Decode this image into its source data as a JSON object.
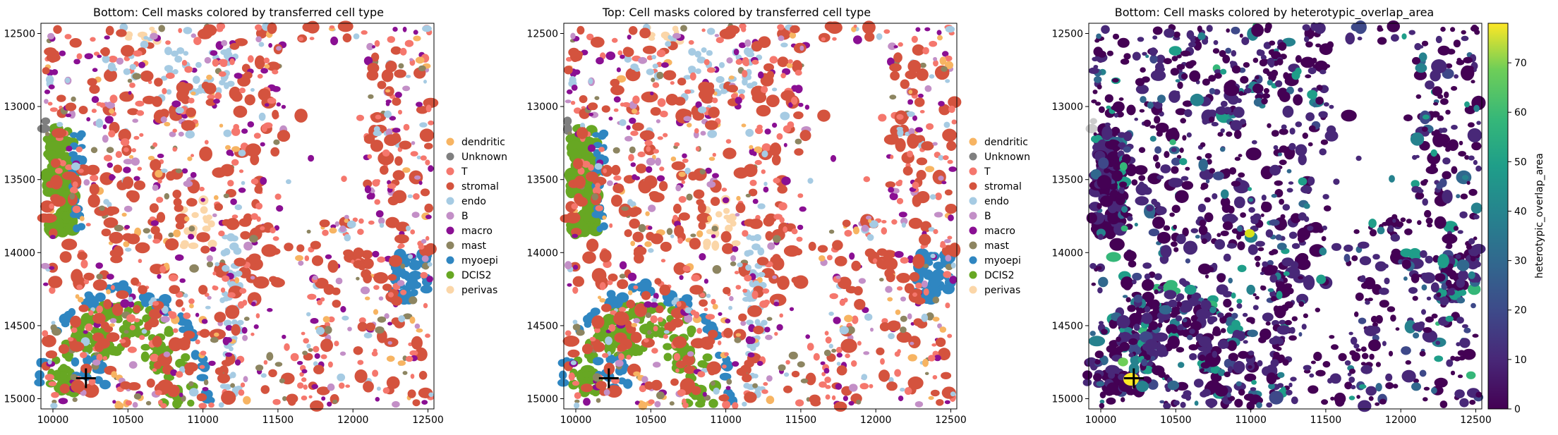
{
  "palette": {
    "dendritic": "#f7b462",
    "Unknown": "#7f7f7f",
    "T": "#f5776d",
    "stromal": "#d4533e",
    "endo": "#a6cbe3",
    "B": "#c38fc7",
    "macro": "#8a0f93",
    "mast": "#8d8561",
    "myoepi": "#2f86c1",
    "DCIS2": "#67a723",
    "perivas": "#fbd6a8"
  },
  "colormap": "viridis",
  "chart_data": [
    {
      "type": "scatter",
      "title": "Bottom: Cell masks colored by transferred cell type",
      "xlim": [
        9920,
        12540
      ],
      "ylim": [
        15070,
        12430
      ],
      "xticks": [
        "10000",
        "10500",
        "11000",
        "11500",
        "12000",
        "12500"
      ],
      "yticks": [
        "12500",
        "13000",
        "13500",
        "14000",
        "14500",
        "15000"
      ],
      "legend": {
        "placement": "right",
        "entries": [
          "dendritic",
          "Unknown",
          "T",
          "stromal",
          "endo",
          "B",
          "macro",
          "mast",
          "myoepi",
          "DCIS2",
          "perivas"
        ]
      },
      "marker": {
        "x": 10220,
        "y": 14860,
        "symbol": "plus"
      }
    },
    {
      "type": "scatter",
      "title": "Top: Cell masks colored by transferred cell type",
      "xlim": [
        9920,
        12540
      ],
      "ylim": [
        15070,
        12430
      ],
      "xticks": [
        "10000",
        "10500",
        "11000",
        "11500",
        "12000",
        "12500"
      ],
      "yticks": [
        "12500",
        "13000",
        "13500",
        "14000",
        "14500",
        "15000"
      ],
      "legend": {
        "placement": "right",
        "entries": [
          "dendritic",
          "Unknown",
          "T",
          "stromal",
          "endo",
          "B",
          "macro",
          "mast",
          "myoepi",
          "DCIS2",
          "perivas"
        ]
      },
      "marker": {
        "x": 10220,
        "y": 14860,
        "symbol": "plus"
      }
    },
    {
      "type": "scatter",
      "title": "Bottom: Cell masks colored by heterotypic_overlap_area",
      "xlim": [
        9920,
        12540
      ],
      "ylim": [
        15070,
        12430
      ],
      "xticks": [
        "10000",
        "10500",
        "11000",
        "11500",
        "12000",
        "12500"
      ],
      "yticks": [
        "12500",
        "13000",
        "13500",
        "14000",
        "14500",
        "15000"
      ],
      "colorbar": {
        "label": "heterotypic_overlap_area",
        "range": [
          0,
          78
        ],
        "ticks": [
          "0",
          "10",
          "20",
          "30",
          "40",
          "50",
          "60",
          "70"
        ]
      },
      "marker": {
        "x": 10220,
        "y": 14860,
        "symbol": "plus"
      }
    }
  ]
}
